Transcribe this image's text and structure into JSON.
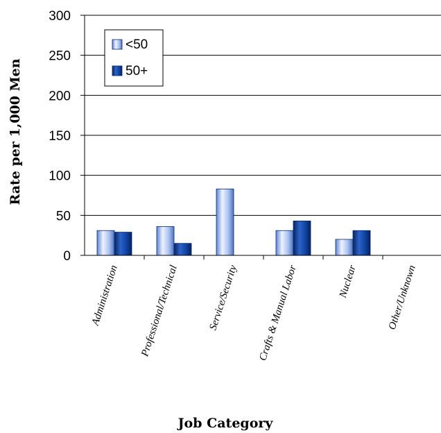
{
  "chart_data": {
    "type": "bar",
    "title": "",
    "xlabel": "Job Category",
    "ylabel": "Rate per 1,000 Men",
    "ylim": [
      0,
      300
    ],
    "yticks": [
      0,
      50,
      100,
      150,
      200,
      250,
      300
    ],
    "categories": [
      "Administration",
      "Professional/Technical",
      "Service/Security",
      "Crafts & Manual Labor",
      "Nuclear",
      "Other/Unknown"
    ],
    "series": [
      {
        "name": "<50",
        "values": [
          31,
          36,
          83,
          31,
          20,
          0
        ],
        "color": "#9DB5E8"
      },
      {
        "name": "50+",
        "values": [
          29,
          15,
          0,
          43,
          31,
          0
        ],
        "color": "#0D3A8C"
      }
    ],
    "grid": true,
    "legend_position": "top-left"
  }
}
